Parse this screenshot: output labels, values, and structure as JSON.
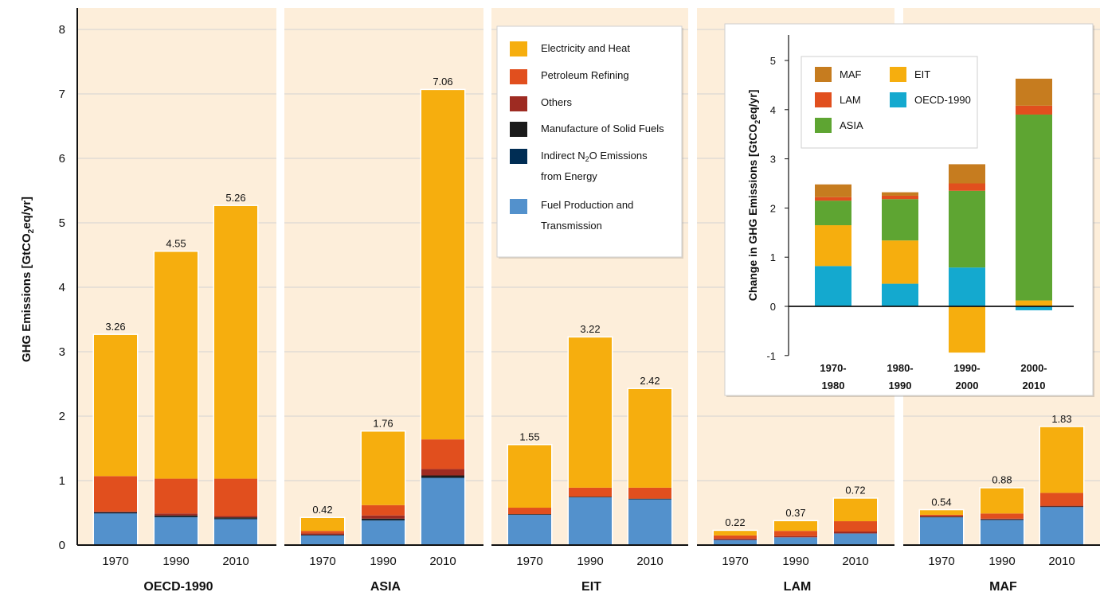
{
  "chart_data": [
    {
      "type": "bar",
      "stacked": true,
      "ylabel": "GHG Emissions [GtCO2eq/yr]",
      "ylim": [
        0,
        8
      ],
      "yticks": [
        0,
        1,
        2,
        3,
        4,
        5,
        6,
        7,
        8
      ],
      "categories": [
        "1970",
        "1990",
        "2010"
      ],
      "legend_position": "top-right",
      "series_legend": [
        {
          "name": "Electricity and Heat",
          "color": "#F6AE0E"
        },
        {
          "name": "Petroleum Refining",
          "color": "#E14F1E"
        },
        {
          "name": "Others",
          "color": "#9E2B22"
        },
        {
          "name": "Manufacture of Solid Fuels",
          "color": "#1A1A1A"
        },
        {
          "name": "Indirect N2O Emissions",
          "name_line2": "from Energy",
          "color": "#002D54"
        },
        {
          "name": "Fuel Production and",
          "name_line2": "Transmission",
          "color": "#5391CC"
        }
      ],
      "panels": [
        {
          "region": "OECD-1990",
          "totals_labels": [
            "3.26",
            "4.55",
            "5.26"
          ],
          "stacks": [
            {
              "Fuel Production and Transmission": 0.49,
              "Indirect N2O Emissions from Energy": 0.01,
              "Manufacture of Solid Fuels": 0.01,
              "Others": 0.01,
              "Petroleum Refining": 0.55,
              "Electricity and Heat": 2.19
            },
            {
              "Fuel Production and Transmission": 0.43,
              "Indirect N2O Emissions from Energy": 0.01,
              "Manufacture of Solid Fuels": 0.02,
              "Others": 0.03,
              "Petroleum Refining": 0.54,
              "Electricity and Heat": 3.52
            },
            {
              "Fuel Production and Transmission": 0.4,
              "Indirect N2O Emissions from Energy": 0.01,
              "Manufacture of Solid Fuels": 0.02,
              "Others": 0.02,
              "Petroleum Refining": 0.58,
              "Electricity and Heat": 4.23
            }
          ]
        },
        {
          "region": "ASIA",
          "totals_labels": [
            "0.42",
            "1.76",
            "7.06"
          ],
          "stacks": [
            {
              "Fuel Production and Transmission": 0.15,
              "Indirect N2O Emissions from Energy": 0.0,
              "Manufacture of Solid Fuels": 0.01,
              "Others": 0.02,
              "Petroleum Refining": 0.04,
              "Electricity and Heat": 0.2
            },
            {
              "Fuel Production and Transmission": 0.38,
              "Indirect N2O Emissions from Energy": 0.01,
              "Manufacture of Solid Fuels": 0.02,
              "Others": 0.05,
              "Petroleum Refining": 0.16,
              "Electricity and Heat": 1.14
            },
            {
              "Fuel Production and Transmission": 1.04,
              "Indirect N2O Emissions from Energy": 0.01,
              "Manufacture of Solid Fuels": 0.03,
              "Others": 0.1,
              "Petroleum Refining": 0.46,
              "Electricity and Heat": 5.42
            }
          ]
        },
        {
          "region": "EIT",
          "totals_labels": [
            "1.55",
            "3.22",
            "2.42"
          ],
          "stacks": [
            {
              "Fuel Production and Transmission": 0.47,
              "Indirect N2O Emissions from Energy": 0.0,
              "Manufacture of Solid Fuels": 0.01,
              "Others": 0.0,
              "Petroleum Refining": 0.1,
              "Electricity and Heat": 0.97
            },
            {
              "Fuel Production and Transmission": 0.74,
              "Indirect N2O Emissions from Energy": 0.0,
              "Manufacture of Solid Fuels": 0.01,
              "Others": 0.0,
              "Petroleum Refining": 0.14,
              "Electricity and Heat": 2.33
            },
            {
              "Fuel Production and Transmission": 0.71,
              "Indirect N2O Emissions from Energy": 0.0,
              "Manufacture of Solid Fuels": 0.01,
              "Others": 0.0,
              "Petroleum Refining": 0.17,
              "Electricity and Heat": 1.53
            }
          ]
        },
        {
          "region": "LAM",
          "totals_labels": [
            "0.22",
            "0.37",
            "0.72"
          ],
          "stacks": [
            {
              "Fuel Production and Transmission": 0.08,
              "Indirect N2O Emissions from Energy": 0.0,
              "Manufacture of Solid Fuels": 0.0,
              "Others": 0.02,
              "Petroleum Refining": 0.05,
              "Electricity and Heat": 0.07
            },
            {
              "Fuel Production and Transmission": 0.12,
              "Indirect N2O Emissions from Energy": 0.0,
              "Manufacture of Solid Fuels": 0.0,
              "Others": 0.02,
              "Petroleum Refining": 0.08,
              "Electricity and Heat": 0.15
            },
            {
              "Fuel Production and Transmission": 0.18,
              "Indirect N2O Emissions from Energy": 0.0,
              "Manufacture of Solid Fuels": 0.0,
              "Others": 0.03,
              "Petroleum Refining": 0.16,
              "Electricity and Heat": 0.35
            }
          ]
        },
        {
          "region": "MAF",
          "totals_labels": [
            "0.54",
            "0.88",
            "1.83"
          ],
          "stacks": [
            {
              "Fuel Production and Transmission": 0.43,
              "Indirect N2O Emissions from Energy": 0.0,
              "Manufacture of Solid Fuels": 0.01,
              "Others": 0.01,
              "Petroleum Refining": 0.02,
              "Electricity and Heat": 0.07
            },
            {
              "Fuel Production and Transmission": 0.39,
              "Indirect N2O Emissions from Energy": 0.0,
              "Manufacture of Solid Fuels": 0.01,
              "Others": 0.01,
              "Petroleum Refining": 0.08,
              "Electricity and Heat": 0.39
            },
            {
              "Fuel Production and Transmission": 0.59,
              "Indirect N2O Emissions from Energy": 0.0,
              "Manufacture of Solid Fuels": 0.01,
              "Others": 0.01,
              "Petroleum Refining": 0.2,
              "Electricity and Heat": 1.02
            }
          ]
        }
      ]
    },
    {
      "type": "bar",
      "stacked": true,
      "ylabel": "Change in GHG Emissions [GtCO2eq/yr]",
      "ylim": [
        -1,
        5
      ],
      "yticks": [
        -1,
        0,
        1,
        2,
        3,
        4,
        5
      ],
      "categories": [
        "1970-",
        "1980-",
        "1990-",
        "2000-"
      ],
      "categories_line2": [
        "1980",
        "1990",
        "2000",
        "2010"
      ],
      "legend_position": "top-left",
      "legend": [
        {
          "name": "MAF",
          "color": "#C67C1F"
        },
        {
          "name": "EIT",
          "color": "#F6AE0E"
        },
        {
          "name": "LAM",
          "color": "#E14F1E"
        },
        {
          "name": "OECD-1990",
          "color": "#14A9CF"
        },
        {
          "name": "ASIA",
          "color": "#5EA532"
        }
      ],
      "series": [
        {
          "name": "OECD-1990",
          "values": [
            0.82,
            0.46,
            0.79,
            -0.08
          ]
        },
        {
          "name": "EIT",
          "values": [
            0.83,
            0.88,
            -0.94,
            0.12
          ]
        },
        {
          "name": "ASIA",
          "values": [
            0.5,
            0.84,
            1.56,
            3.78
          ]
        },
        {
          "name": "LAM",
          "values": [
            0.07,
            0.07,
            0.15,
            0.18
          ]
        },
        {
          "name": "MAF",
          "values": [
            0.26,
            0.07,
            0.39,
            0.55
          ]
        }
      ]
    }
  ]
}
